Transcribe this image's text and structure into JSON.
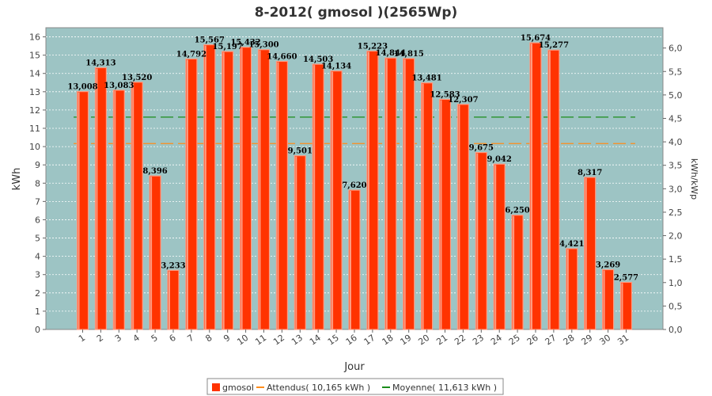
{
  "chart_data": {
    "type": "bar",
    "title": "8-2012( gmosol )(2565Wp)",
    "xlabel": "Jour",
    "ylabel": "kWh",
    "y2label": "kWh/kWp",
    "ylim": [
      0,
      16.5
    ],
    "y2lim": [
      0,
      6.433
    ],
    "yticks": [
      0,
      1,
      2,
      3,
      4,
      5,
      6,
      7,
      8,
      9,
      10,
      11,
      12,
      13,
      14,
      15,
      16
    ],
    "y2ticks": [
      "0,0",
      "0,5",
      "1,0",
      "1,5",
      "2,0",
      "2,5",
      "3,0",
      "3,5",
      "4,0",
      "4,5",
      "5,0",
      "5,5",
      "6,0"
    ],
    "grid": true,
    "legend_position": "bottom",
    "categories": [
      "1",
      "2",
      "3",
      "4",
      "5",
      "6",
      "7",
      "8",
      "9",
      "10",
      "11",
      "12",
      "13",
      "14",
      "15",
      "16",
      "17",
      "18",
      "19",
      "20",
      "21",
      "22",
      "23",
      "24",
      "25",
      "26",
      "27",
      "28",
      "29",
      "30",
      "31"
    ],
    "series": [
      {
        "name": "gmosol",
        "type": "bar",
        "color": "#ff3300",
        "values": [
          13.008,
          14.313,
          13.083,
          13.52,
          8.396,
          3.233,
          14.792,
          15.567,
          15.197,
          15.432,
          15.3,
          14.66,
          9.501,
          14.503,
          14.134,
          7.62,
          15.223,
          14.844,
          14.815,
          13.481,
          12.583,
          12.307,
          9.675,
          9.042,
          6.25,
          15.674,
          15.277,
          4.421,
          8.317,
          3.269,
          2.577
        ],
        "labels": [
          "",
          "14,313",
          "13,083",
          "13,520",
          "8,396",
          "3,233",
          "14,792",
          "15,567",
          "15,197",
          "15,432",
          "15,300",
          "14,660",
          "9,501",
          "14,503",
          "14,134",
          "7,620",
          "15,223",
          "14,844",
          "14,815",
          "13,481",
          "12,583",
          "12,307",
          "9,675",
          "9,042",
          "6,250",
          "15,674",
          "15,277",
          "4,421",
          "8,317",
          "3,269",
          "2,577"
        ]
      },
      {
        "name": "Attendus( 10,165 kWh )",
        "type": "line",
        "color": "#ff8c1a",
        "value": 10.165
      },
      {
        "name": "Moyenne( 11,613 kWh )",
        "type": "line",
        "color": "#1a8c1a",
        "value": 11.613
      }
    ],
    "first_label": "13,008"
  },
  "colors": {
    "plot_bg": "#9dc4c4",
    "grid": "#ffffff",
    "bar": "#ff3300",
    "bar_highlight": "#ff9a80",
    "attendus": "#ff8c1a",
    "moyenne": "#1a8c1a"
  }
}
